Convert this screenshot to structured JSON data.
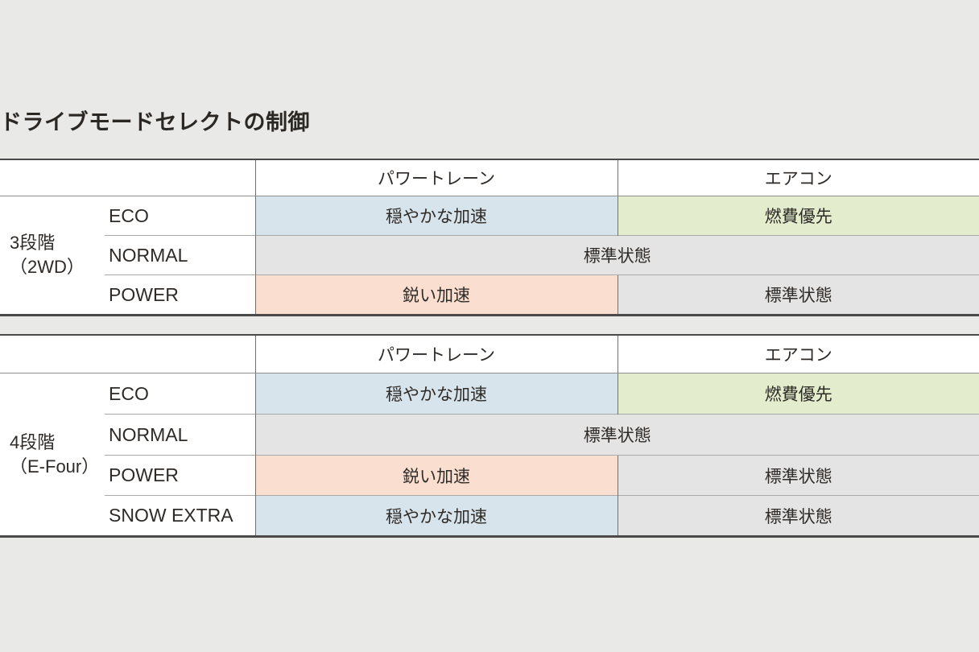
{
  "title": "ドライブモードセレクトの制御",
  "colors": {
    "page_background": "#e9e9e8",
    "cell_white": "#ffffff",
    "powertrain_calm_blue": "#d8e4eb",
    "powertrain_sharp_pink": "#fadfd0",
    "aircon_eco_green": "#e3edcd",
    "standard_gray": "#e4e4e4",
    "border_heavy": "#4a4a4a",
    "border_vertical": "#707070",
    "border_row": "#a9a9a9",
    "text": "#2e2a27"
  },
  "tables": [
    {
      "group": {
        "line1": "3段階",
        "line2": "（2WD）"
      },
      "col_powertrain": "パワートレーン",
      "col_aircon": "エアコン",
      "rows": [
        {
          "mode": "ECO",
          "powertrain": "穏やかな加速",
          "aircon": "燃費優先"
        },
        {
          "mode": "NORMAL",
          "both": "標準状態"
        },
        {
          "mode": "POWER",
          "powertrain": "鋭い加速",
          "aircon": "標準状態"
        }
      ]
    },
    {
      "group": {
        "line1": "4段階",
        "line2": "（E-Four）"
      },
      "col_powertrain": "パワートレーン",
      "col_aircon": "エアコン",
      "rows": [
        {
          "mode": "ECO",
          "powertrain": "穏やかな加速",
          "aircon": "燃費優先"
        },
        {
          "mode": "NORMAL",
          "both": "標準状態"
        },
        {
          "mode": "POWER",
          "powertrain": "鋭い加速",
          "aircon": "標準状態"
        },
        {
          "mode": "SNOW EXTRA",
          "powertrain": "穏やかな加速",
          "aircon": "標準状態"
        }
      ]
    }
  ]
}
